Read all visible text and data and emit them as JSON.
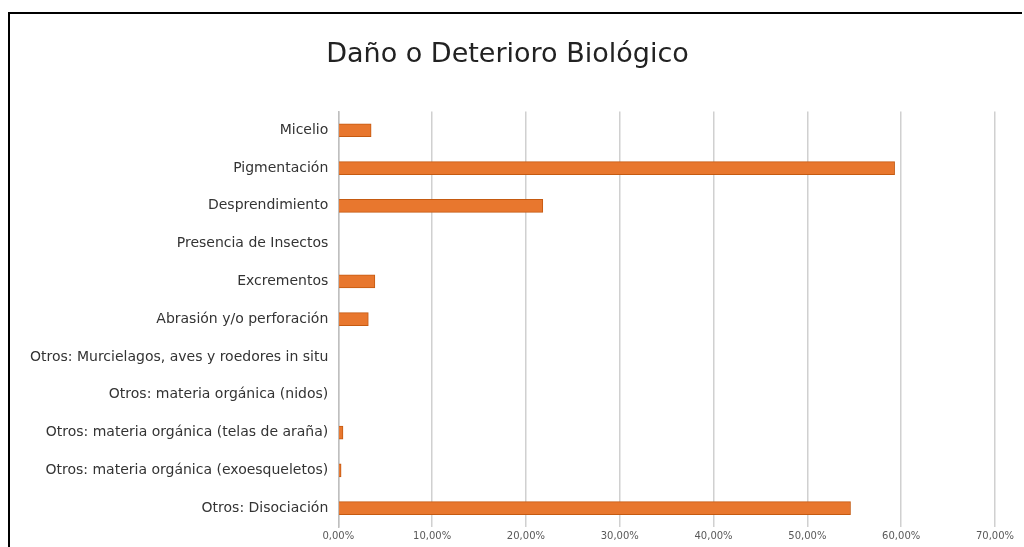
{
  "chart_data": {
    "type": "bar",
    "orientation": "horizontal",
    "title": "Daño o Deterioro Biológico",
    "categories": [
      "Micelio",
      "Pigmentación",
      "Desprendimiento",
      "Presencia de Insectos",
      "Excrementos",
      "Abrasión y/o perforación",
      "Otros: Murcielagos, aves y roedores in situ",
      "Otros: materia orgánica (nidos)",
      "Otros: materia orgánica (telas de araña)",
      "Otros: materia orgánica (exoesqueletos)",
      "Otros: Disociación"
    ],
    "values": [
      3.5,
      59.3,
      21.8,
      0,
      3.9,
      3.2,
      0,
      0,
      0.5,
      0.3,
      54.6
    ],
    "color": "#e8772e",
    "xlim": [
      0,
      70
    ],
    "xticks": [
      {
        "value": 0,
        "label": "0,00%"
      },
      {
        "value": 10,
        "label": "10,00%"
      },
      {
        "value": 20,
        "label": "20,00%"
      },
      {
        "value": 30,
        "label": "30,00%"
      },
      {
        "value": 40,
        "label": "40,00%"
      },
      {
        "value": 50,
        "label": "50,00%"
      },
      {
        "value": 60,
        "label": "60,00%"
      },
      {
        "value": 70,
        "label": "70,00%"
      }
    ],
    "grid": "x",
    "legend": false
  }
}
